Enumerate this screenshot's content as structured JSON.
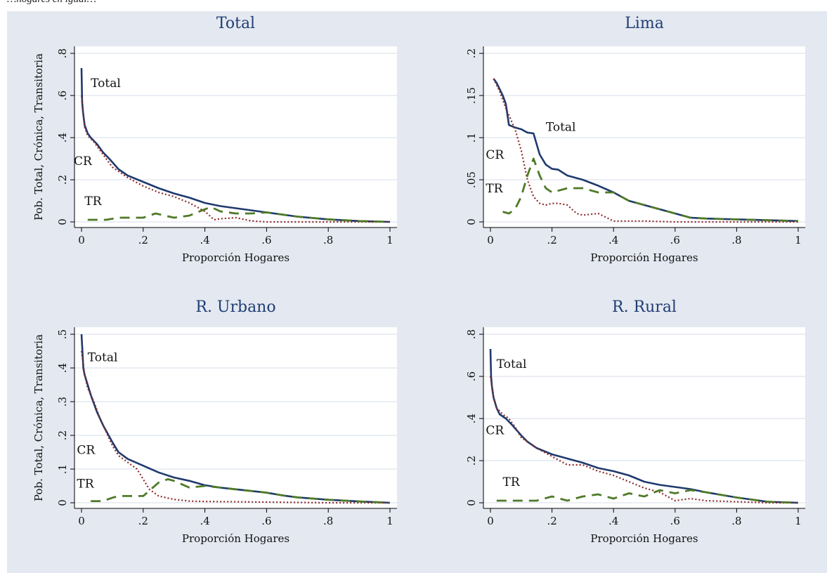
{
  "header": {
    "text": "…hogares en igual…"
  },
  "colors": {
    "background": "#e4e8f0",
    "plot": "#ffffff",
    "grid": "#e4e8f0",
    "axis": "#000000",
    "title": "#1f3e74",
    "total": "#1f3a6e",
    "cronica": "#8c2a2a",
    "transitoria": "#4f7a28"
  },
  "chart_data": [
    {
      "type": "line",
      "title": "Total",
      "xlabel": "Proporción Hogares",
      "ylabel": "Pob. Total, Crónica, Transitoria",
      "xlim": [
        0,
        1
      ],
      "ylim": [
        0,
        0.8
      ],
      "xticks": [
        0,
        0.2,
        0.4,
        0.6,
        0.8,
        1
      ],
      "xtick_labels": [
        "0",
        ".2",
        ".4",
        ".6",
        ".8",
        "1"
      ],
      "yticks": [
        0,
        0.2,
        0.4,
        0.6,
        0.8
      ],
      "ytick_labels": [
        "0",
        ".2",
        ".4",
        ".6",
        ".8"
      ],
      "grid": true,
      "annotations": [
        {
          "text": "Total",
          "x": 0.03,
          "y": 0.64
        },
        {
          "text": "CR",
          "x": -0.025,
          "y": 0.27
        },
        {
          "text": "TR",
          "x": 0.01,
          "y": 0.08
        }
      ],
      "series": [
        {
          "key": "total",
          "x": [
            0,
            0.002,
            0.005,
            0.01,
            0.02,
            0.03,
            0.05,
            0.07,
            0.09,
            0.12,
            0.15,
            0.2,
            0.25,
            0.3,
            0.35,
            0.4,
            0.45,
            0.5,
            0.55,
            0.6,
            0.65,
            0.7,
            0.8,
            0.9,
            1.0
          ],
          "y": [
            0.73,
            0.57,
            0.52,
            0.46,
            0.42,
            0.4,
            0.37,
            0.33,
            0.3,
            0.25,
            0.22,
            0.19,
            0.16,
            0.135,
            0.115,
            0.09,
            0.075,
            0.065,
            0.055,
            0.045,
            0.035,
            0.025,
            0.012,
            0.004,
            0
          ]
        },
        {
          "key": "cronica",
          "x": [
            0,
            0.01,
            0.02,
            0.04,
            0.06,
            0.08,
            0.1,
            0.15,
            0.2,
            0.25,
            0.3,
            0.35,
            0.4,
            0.43,
            0.45,
            0.5,
            0.55,
            0.6,
            0.7,
            0.8,
            0.9,
            1.0
          ],
          "y": [
            0.6,
            0.45,
            0.41,
            0.38,
            0.34,
            0.3,
            0.26,
            0.21,
            0.17,
            0.14,
            0.12,
            0.09,
            0.05,
            0.01,
            0.015,
            0.02,
            0.005,
            0,
            0,
            0,
            0,
            0
          ]
        },
        {
          "key": "transitoria",
          "x": [
            0.02,
            0.08,
            0.12,
            0.15,
            0.2,
            0.24,
            0.27,
            0.3,
            0.35,
            0.4,
            0.42,
            0.45,
            0.5,
            0.55,
            0.6,
            0.65,
            0.7,
            0.8,
            0.9,
            1.0
          ],
          "y": [
            0.01,
            0.01,
            0.02,
            0.02,
            0.02,
            0.04,
            0.03,
            0.02,
            0.03,
            0.06,
            0.07,
            0.05,
            0.04,
            0.04,
            0.045,
            0.035,
            0.025,
            0.012,
            0.004,
            0
          ]
        }
      ]
    },
    {
      "type": "line",
      "title": "Lima",
      "xlabel": "Proporción Hogares",
      "ylabel": "",
      "xlim": [
        0,
        1
      ],
      "ylim": [
        0,
        0.2
      ],
      "xticks": [
        0,
        0.2,
        0.4,
        0.6,
        0.8,
        1
      ],
      "xtick_labels": [
        "0",
        ".2",
        ".4",
        ".6",
        ".8",
        "1"
      ],
      "yticks": [
        0,
        0.05,
        0.1,
        0.15,
        0.2
      ],
      "ytick_labels": [
        "0",
        ".05",
        ".1",
        ".15",
        ".2"
      ],
      "grid": true,
      "annotations": [
        {
          "text": "Total",
          "x": 0.18,
          "y": 0.108
        },
        {
          "text": "CR",
          "x": -0.015,
          "y": 0.075
        },
        {
          "text": "TR",
          "x": -0.015,
          "y": 0.035
        }
      ],
      "series": [
        {
          "key": "total",
          "x": [
            0.01,
            0.02,
            0.04,
            0.05,
            0.06,
            0.08,
            0.1,
            0.12,
            0.14,
            0.16,
            0.18,
            0.2,
            0.22,
            0.25,
            0.3,
            0.35,
            0.4,
            0.45,
            0.5,
            0.55,
            0.6,
            0.65,
            0.7,
            0.8,
            0.9,
            1.0
          ],
          "y": [
            0.17,
            0.165,
            0.15,
            0.14,
            0.115,
            0.112,
            0.11,
            0.106,
            0.105,
            0.08,
            0.068,
            0.063,
            0.062,
            0.055,
            0.05,
            0.043,
            0.035,
            0.025,
            0.02,
            0.015,
            0.01,
            0.005,
            0.004,
            0.003,
            0.002,
            0.001
          ]
        },
        {
          "key": "cronica",
          "x": [
            0.01,
            0.03,
            0.05,
            0.08,
            0.1,
            0.12,
            0.14,
            0.16,
            0.18,
            0.2,
            0.22,
            0.25,
            0.28,
            0.3,
            0.35,
            0.4,
            0.5,
            0.6,
            0.8,
            1.0
          ],
          "y": [
            0.17,
            0.155,
            0.135,
            0.11,
            0.085,
            0.05,
            0.03,
            0.022,
            0.02,
            0.022,
            0.022,
            0.02,
            0.01,
            0.008,
            0.01,
            0.001,
            0.001,
            0,
            0,
            0
          ]
        },
        {
          "key": "transitoria",
          "x": [
            0.04,
            0.06,
            0.08,
            0.1,
            0.12,
            0.14,
            0.16,
            0.18,
            0.2,
            0.25,
            0.3,
            0.35,
            0.4,
            0.45,
            0.5,
            0.55,
            0.6,
            0.65,
            0.7,
            0.8,
            0.9,
            1.0
          ],
          "y": [
            0.012,
            0.01,
            0.015,
            0.03,
            0.055,
            0.075,
            0.055,
            0.04,
            0.035,
            0.04,
            0.04,
            0.035,
            0.035,
            0.025,
            0.02,
            0.015,
            0.01,
            0.005,
            0.004,
            0.003,
            0.002,
            0.001
          ]
        }
      ]
    },
    {
      "type": "line",
      "title": "R. Urbano",
      "xlabel": "Proporción Hogares",
      "ylabel": "Pob. Total, Crónica, Transitoria",
      "xlim": [
        0,
        1
      ],
      "ylim": [
        0,
        0.5
      ],
      "xticks": [
        0,
        0.2,
        0.4,
        0.6,
        0.8,
        1
      ],
      "xtick_labels": [
        "0",
        ".2",
        ".4",
        ".6",
        ".8",
        "1"
      ],
      "yticks": [
        0,
        0.1,
        0.2,
        0.3,
        0.4,
        0.5
      ],
      "ytick_labels": [
        "0",
        ".1",
        ".2",
        ".3",
        ".4",
        ".5"
      ],
      "grid": true,
      "annotations": [
        {
          "text": "Total",
          "x": 0.02,
          "y": 0.42
        },
        {
          "text": "CR",
          "x": -0.015,
          "y": 0.145
        },
        {
          "text": "TR",
          "x": -0.015,
          "y": 0.045
        }
      ],
      "series": [
        {
          "key": "total",
          "x": [
            0,
            0.003,
            0.006,
            0.01,
            0.02,
            0.03,
            0.05,
            0.07,
            0.1,
            0.12,
            0.15,
            0.2,
            0.25,
            0.3,
            0.35,
            0.4,
            0.45,
            0.5,
            0.55,
            0.6,
            0.65,
            0.7,
            0.8,
            0.9,
            1.0
          ],
          "y": [
            0.53,
            0.45,
            0.4,
            0.38,
            0.35,
            0.32,
            0.27,
            0.23,
            0.18,
            0.15,
            0.13,
            0.11,
            0.09,
            0.075,
            0.065,
            0.052,
            0.045,
            0.04,
            0.035,
            0.03,
            0.022,
            0.016,
            0.009,
            0.004,
            0
          ]
        },
        {
          "key": "cronica",
          "x": [
            0,
            0.01,
            0.02,
            0.04,
            0.06,
            0.08,
            0.1,
            0.12,
            0.15,
            0.18,
            0.2,
            0.22,
            0.25,
            0.3,
            0.35,
            0.4,
            0.5,
            0.6,
            0.8,
            1.0
          ],
          "y": [
            0.45,
            0.38,
            0.34,
            0.3,
            0.25,
            0.21,
            0.17,
            0.14,
            0.12,
            0.1,
            0.07,
            0.04,
            0.02,
            0.01,
            0.005,
            0.004,
            0.003,
            0.002,
            0,
            0
          ]
        },
        {
          "key": "transitoria",
          "x": [
            0.03,
            0.07,
            0.1,
            0.12,
            0.15,
            0.2,
            0.25,
            0.28,
            0.3,
            0.35,
            0.4,
            0.45,
            0.5,
            0.55,
            0.6,
            0.65,
            0.7,
            0.8,
            0.9,
            1.0
          ],
          "y": [
            0.005,
            0.005,
            0.015,
            0.02,
            0.02,
            0.02,
            0.06,
            0.07,
            0.065,
            0.045,
            0.05,
            0.045,
            0.04,
            0.035,
            0.03,
            0.022,
            0.016,
            0.009,
            0.004,
            0
          ]
        }
      ]
    },
    {
      "type": "line",
      "title": "R. Rural",
      "xlabel": "Proporción Hogares",
      "ylabel": "",
      "xlim": [
        0,
        1
      ],
      "ylim": [
        0,
        0.8
      ],
      "xticks": [
        0,
        0.2,
        0.4,
        0.6,
        0.8,
        1
      ],
      "xtick_labels": [
        "0",
        ".2",
        ".4",
        ".6",
        ".8",
        "1"
      ],
      "yticks": [
        0,
        0.2,
        0.4,
        0.6,
        0.8
      ],
      "ytick_labels": [
        "0",
        ".2",
        ".4",
        ".6",
        ".8"
      ],
      "grid": true,
      "annotations": [
        {
          "text": "Total",
          "x": 0.02,
          "y": 0.64
        },
        {
          "text": "CR",
          "x": -0.015,
          "y": 0.325
        },
        {
          "text": "TR",
          "x": 0.04,
          "y": 0.08
        }
      ],
      "series": [
        {
          "key": "total",
          "x": [
            0,
            0.002,
            0.005,
            0.01,
            0.02,
            0.03,
            0.05,
            0.07,
            0.1,
            0.12,
            0.15,
            0.2,
            0.25,
            0.3,
            0.35,
            0.4,
            0.45,
            0.5,
            0.55,
            0.6,
            0.65,
            0.7,
            0.8,
            0.9,
            1.0
          ],
          "y": [
            0.73,
            0.6,
            0.55,
            0.5,
            0.45,
            0.42,
            0.4,
            0.37,
            0.32,
            0.29,
            0.26,
            0.23,
            0.21,
            0.19,
            0.165,
            0.15,
            0.13,
            0.1,
            0.085,
            0.075,
            0.065,
            0.05,
            0.025,
            0.005,
            0
          ]
        },
        {
          "key": "cronica",
          "x": [
            0,
            0.01,
            0.02,
            0.04,
            0.06,
            0.08,
            0.1,
            0.15,
            0.2,
            0.25,
            0.3,
            0.35,
            0.4,
            0.45,
            0.5,
            0.55,
            0.6,
            0.65,
            0.7,
            0.8,
            0.9,
            1.0
          ],
          "y": [
            0.6,
            0.5,
            0.45,
            0.42,
            0.4,
            0.36,
            0.31,
            0.26,
            0.22,
            0.18,
            0.18,
            0.15,
            0.13,
            0.1,
            0.07,
            0.05,
            0.01,
            0.02,
            0.01,
            0.005,
            0,
            0
          ]
        },
        {
          "key": "transitoria",
          "x": [
            0.02,
            0.15,
            0.2,
            0.25,
            0.3,
            0.35,
            0.4,
            0.45,
            0.5,
            0.55,
            0.6,
            0.65,
            0.7,
            0.8,
            0.9,
            1.0
          ],
          "y": [
            0.01,
            0.01,
            0.03,
            0.01,
            0.03,
            0.04,
            0.02,
            0.045,
            0.03,
            0.06,
            0.045,
            0.06,
            0.05,
            0.025,
            0.005,
            0
          ]
        }
      ]
    }
  ]
}
